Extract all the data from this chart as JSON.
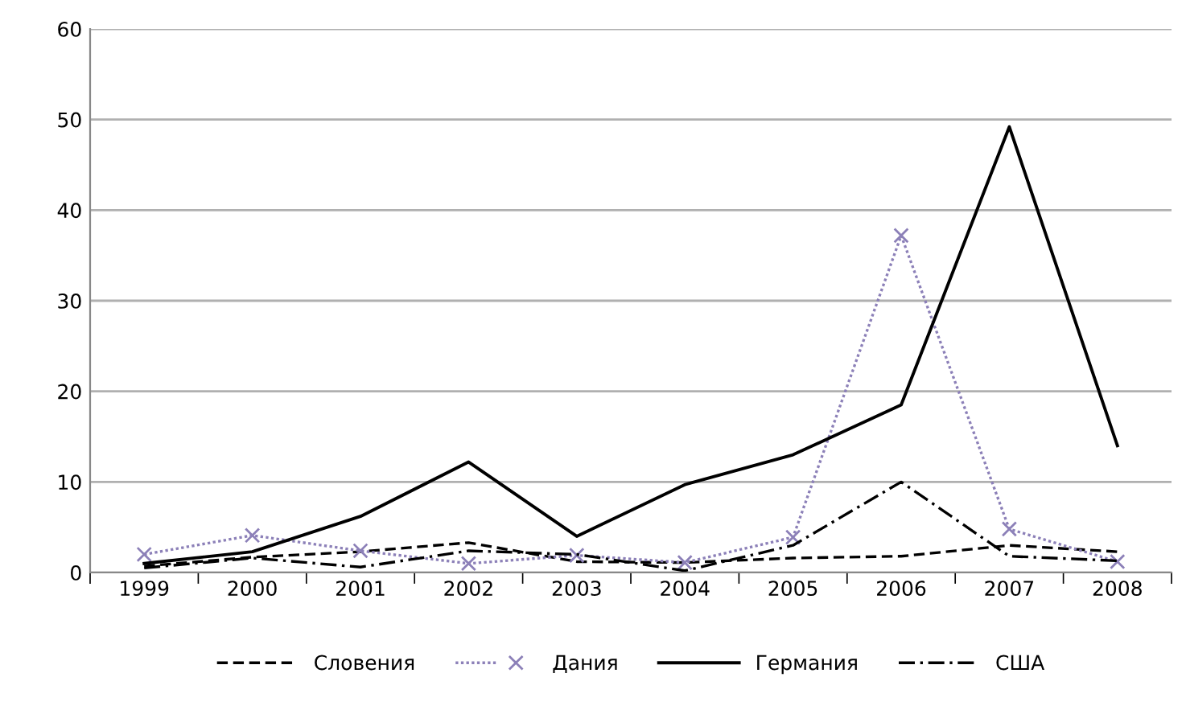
{
  "chart_data": {
    "type": "line",
    "categories": [
      "1999",
      "2000",
      "2001",
      "2002",
      "2003",
      "2004",
      "2005",
      "2006",
      "2007",
      "2008"
    ],
    "series": [
      {
        "name": "Словения",
        "color": "#000000",
        "line_style": "dashed",
        "marker": "none",
        "values": [
          0.7,
          1.7,
          2.3,
          3.3,
          1.2,
          1.1,
          1.6,
          1.8,
          3.0,
          2.3
        ]
      },
      {
        "name": "Дания",
        "color": "#8c80b8",
        "line_style": "dotted",
        "marker": "cross",
        "values": [
          2.0,
          4.1,
          2.4,
          1.0,
          1.9,
          1.1,
          3.9,
          37.2,
          4.8,
          1.2
        ]
      },
      {
        "name": "Германия",
        "color": "#000000",
        "line_style": "solid",
        "marker": "none",
        "values": [
          1.0,
          2.3,
          6.2,
          12.2,
          4.0,
          9.7,
          13.0,
          18.5,
          49.2,
          14.0
        ]
      },
      {
        "name": "США",
        "color": "#000000",
        "line_style": "dashdot",
        "marker": "none",
        "values": [
          0.5,
          1.6,
          0.6,
          2.4,
          2.0,
          0.2,
          3.0,
          10.0,
          1.8,
          1.3
        ]
      }
    ],
    "ylim": [
      0,
      60
    ],
    "yticks": [
      0,
      10,
      20,
      30,
      40,
      50,
      60
    ],
    "grid": "y",
    "legend": "bottom"
  }
}
